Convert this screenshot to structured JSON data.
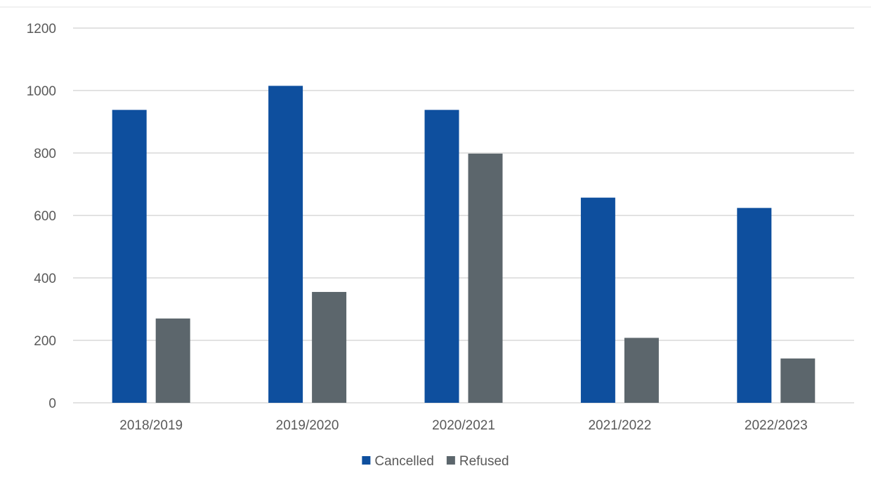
{
  "chart_data": {
    "type": "bar",
    "categories": [
      "2018/2019",
      "2019/2020",
      "2020/2021",
      "2021/2022",
      "2022/2023"
    ],
    "series": [
      {
        "name": "Cancelled",
        "color": "#0e4f9e",
        "values": [
          938,
          1015,
          938,
          657,
          624
        ]
      },
      {
        "name": "Refused",
        "color": "#5c666c",
        "values": [
          270,
          355,
          798,
          208,
          142
        ]
      }
    ],
    "ylim": [
      0,
      1200
    ],
    "yticks": [
      0,
      200,
      400,
      600,
      800,
      1000,
      1200
    ],
    "title": "",
    "xlabel": "",
    "ylabel": "",
    "grid": true,
    "legend_position": "bottom"
  }
}
